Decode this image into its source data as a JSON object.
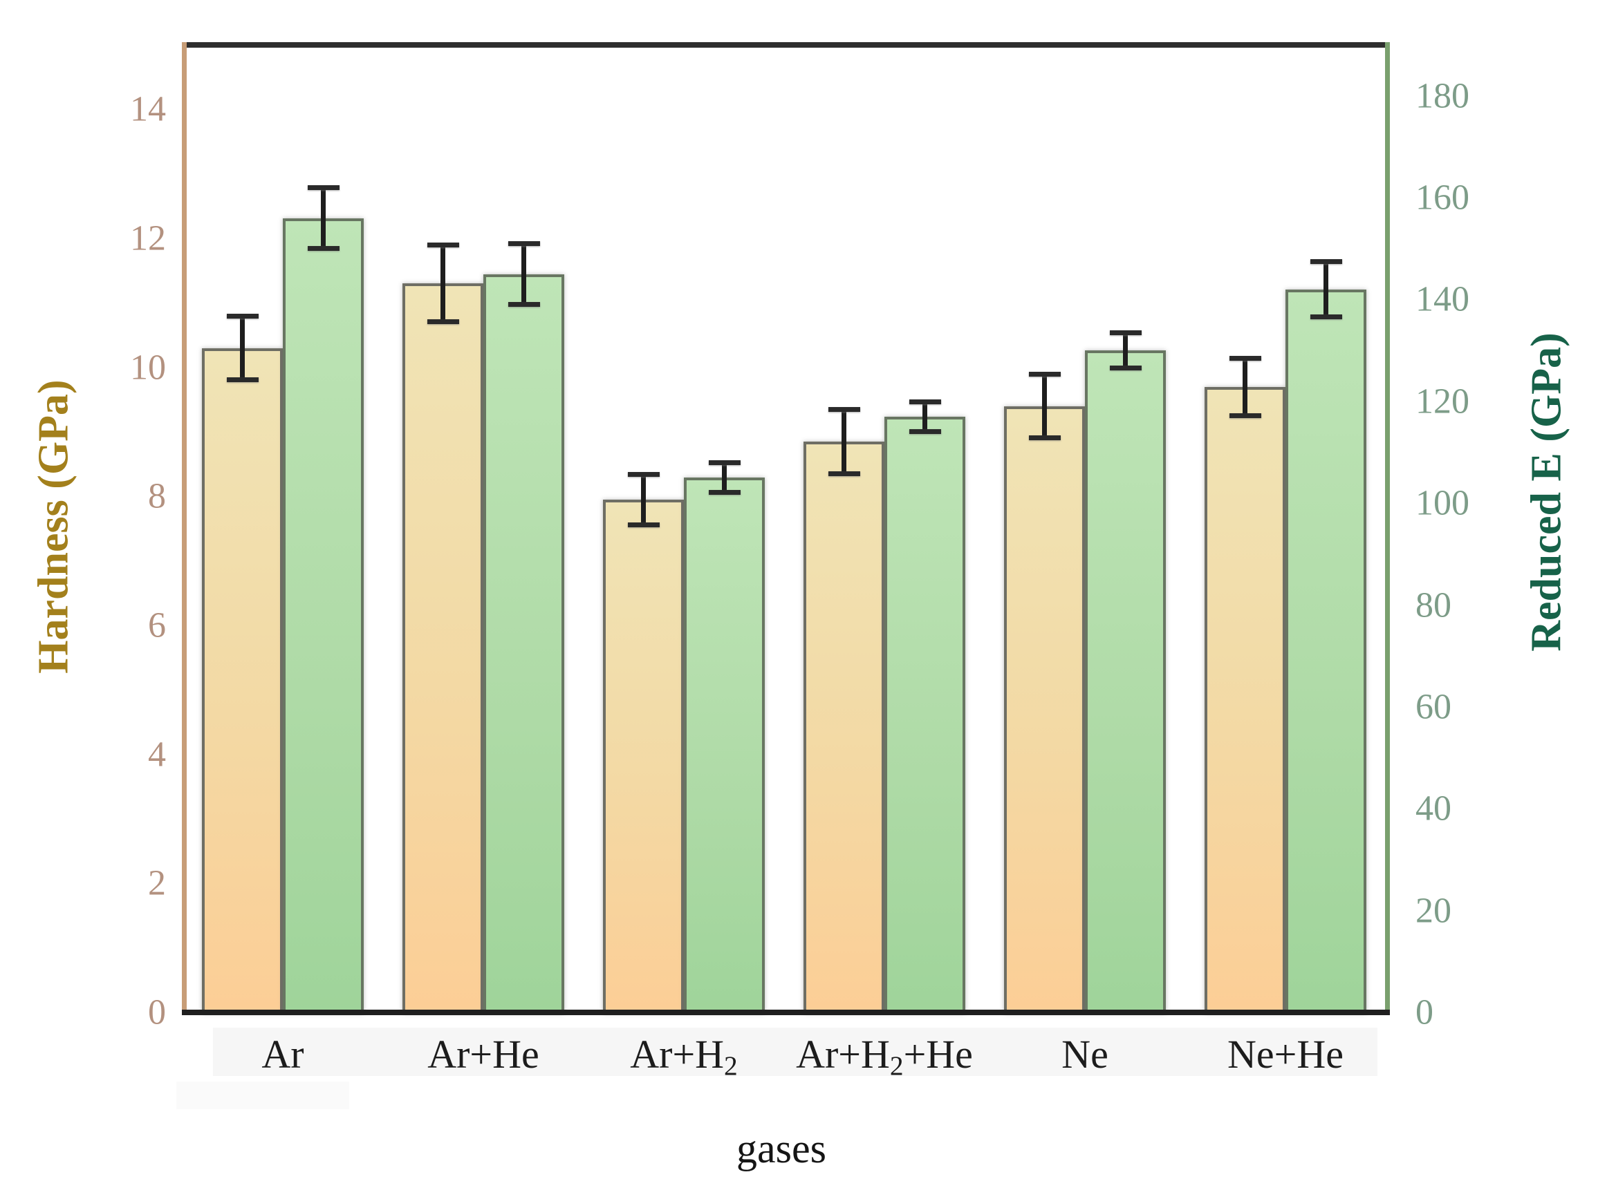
{
  "figure": {
    "background": "#ffffff",
    "type_note": "dual-axis grouped bar chart"
  },
  "chart_data": {
    "type": "bar",
    "title": "",
    "xlabel": "gases",
    "categories_text": [
      "Ar",
      "Ar+He",
      "Ar+H2",
      "Ar+H2+He",
      "Ne",
      "Ne+He"
    ],
    "categories_rich": [
      [
        [
          "Ar"
        ]
      ],
      [
        [
          "Ar+He"
        ]
      ],
      [
        [
          "Ar+H"
        ],
        [
          "2",
          "sub"
        ]
      ],
      [
        [
          "Ar+H"
        ],
        [
          "2",
          "sub"
        ],
        [
          "+He"
        ]
      ],
      [
        [
          "Ne"
        ]
      ],
      [
        [
          "Ne+He"
        ]
      ]
    ],
    "series": [
      {
        "name": "Hardness",
        "axis": "left",
        "color_top": "#f0e4b6",
        "color_bottom": "#fcce96",
        "values": [
          10.3,
          11.3,
          7.95,
          8.85,
          9.4,
          9.7
        ],
        "errors": [
          0.5,
          0.6,
          0.4,
          0.5,
          0.5,
          0.45
        ]
      },
      {
        "name": "Reduced E",
        "axis": "right",
        "color_top": "#bfe5b7",
        "color_bottom": "#9fd49a",
        "values": [
          156,
          145,
          105,
          117,
          130,
          142
        ],
        "errors": [
          6,
          6,
          3,
          3,
          3.5,
          5.5
        ]
      }
    ],
    "left_axis": {
      "label": "Hardness (GPa)",
      "color": "#a3801c",
      "tick_color": "#b3917f",
      "line_color": "#c79d77",
      "ticks": [
        0,
        2,
        4,
        6,
        8,
        10,
        12,
        14
      ],
      "range": [
        0,
        15
      ]
    },
    "right_axis": {
      "label": "Reduced E (GPa)",
      "color": "#176249",
      "tick_color": "#7d9c88",
      "line_color": "#7aa06e",
      "ticks": [
        0,
        20,
        40,
        60,
        80,
        100,
        120,
        140,
        160,
        180
      ],
      "range": [
        0,
        190
      ]
    },
    "legend_position": "none",
    "grid": false
  }
}
